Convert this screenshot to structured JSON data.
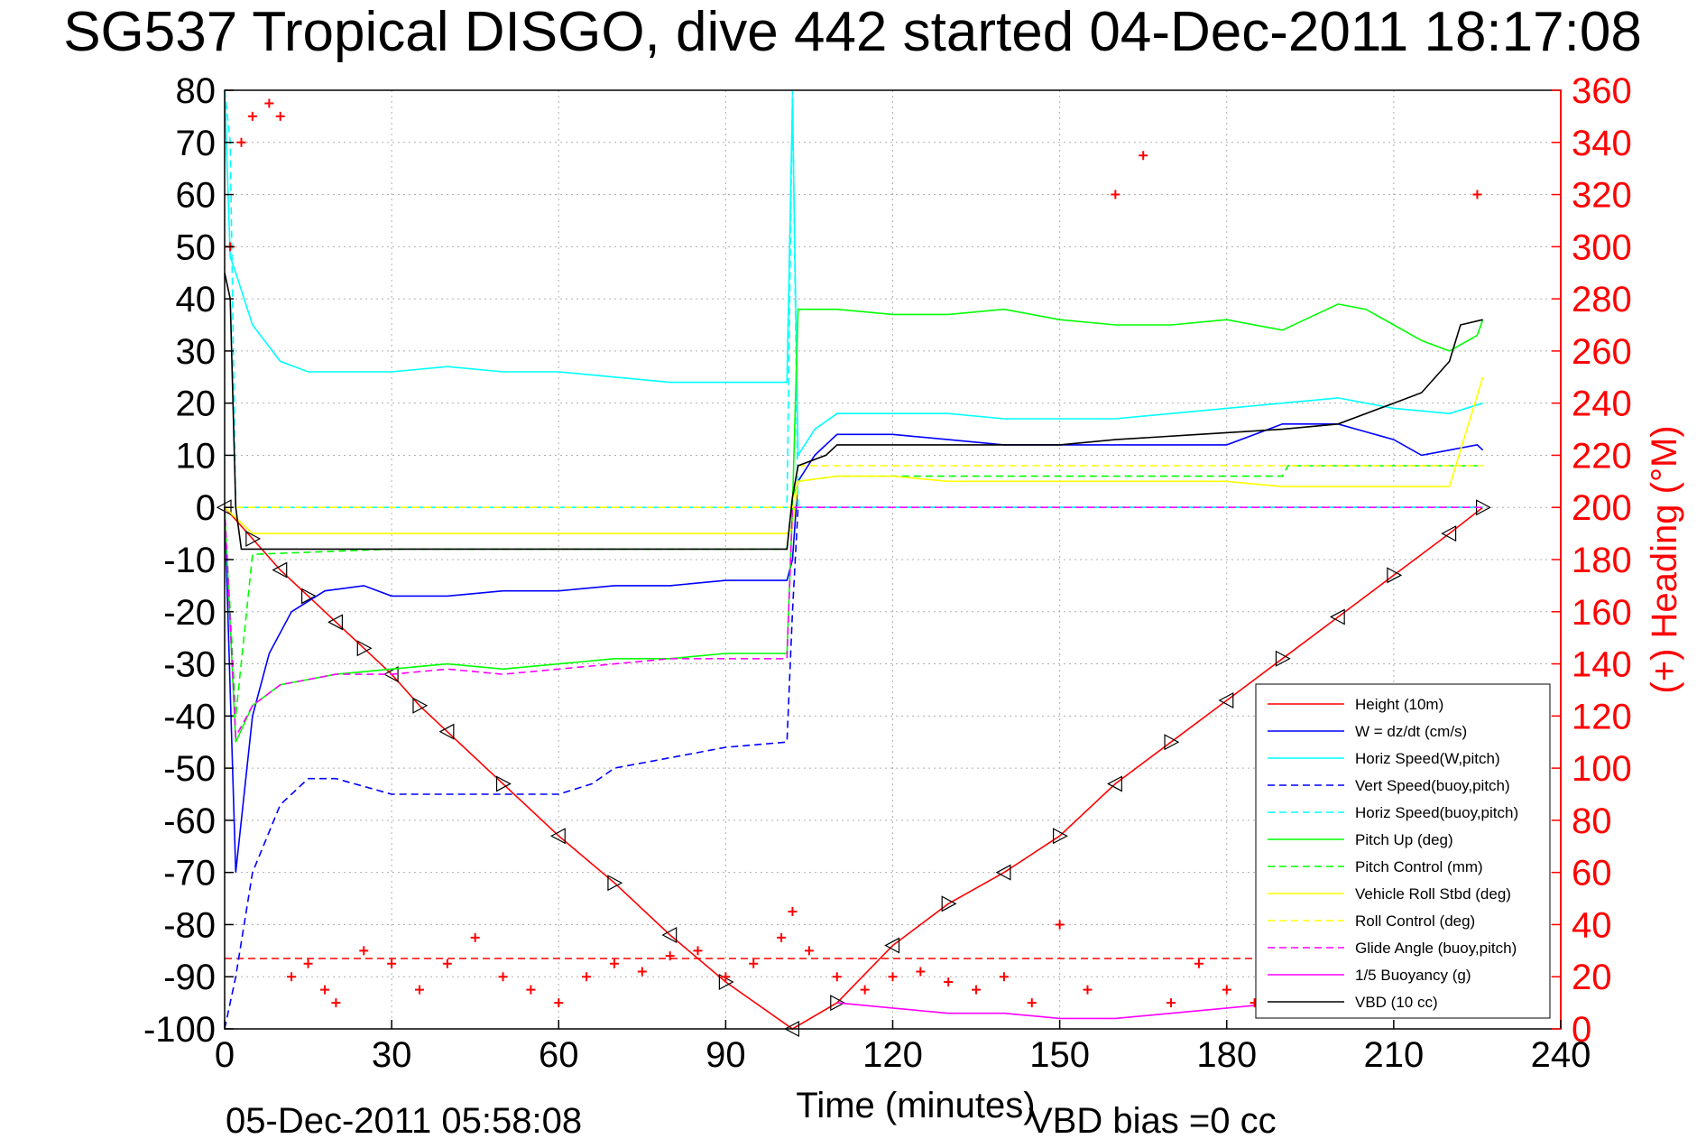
{
  "chart_data": {
    "type": "line",
    "title": "SG537 Tropical DISGO, dive 442 started 04-Dec-2011 18:17:08",
    "xlabel": "Time (minutes)",
    "ylabel_right": "(+) Heading (°M)",
    "xlim": [
      0,
      240
    ],
    "ylim": [
      -100,
      80
    ],
    "ylim_right": [
      0,
      360
    ],
    "x_ticks": [
      0,
      30,
      60,
      90,
      120,
      150,
      180,
      210,
      240
    ],
    "y_ticks": [
      80,
      70,
      60,
      50,
      40,
      30,
      20,
      10,
      0,
      -10,
      -20,
      -30,
      -40,
      -50,
      -60,
      -70,
      -80,
      -90,
      -100
    ],
    "y_ticks_right": [
      360,
      340,
      320,
      300,
      280,
      260,
      240,
      220,
      200,
      180,
      160,
      140,
      120,
      100,
      80,
      60,
      40,
      20,
      0
    ],
    "grid": true,
    "legend_position": "bottom-right",
    "footer_left": "05-Dec-2011 05:58:08",
    "footer_right": "VBD bias =0 cc",
    "colors": {
      "height": "#ff0000",
      "w": "#0000ff",
      "horiz_speed": "#00ffff",
      "pitch": "#00ff00",
      "roll": "#ffff00",
      "glide": "#ff00ff",
      "vbd": "#000000",
      "heading": "#ff0000"
    },
    "series": [
      {
        "name": "Height (10m)",
        "color": "#ff0000",
        "style": "solid",
        "marker": "triangle",
        "x": [
          0,
          5,
          10,
          15,
          20,
          25,
          30,
          35,
          40,
          50,
          60,
          70,
          80,
          90,
          102,
          110,
          120,
          130,
          140,
          150,
          160,
          170,
          180,
          190,
          200,
          210,
          220,
          226
        ],
        "y": [
          0,
          -6,
          -12,
          -17,
          -22,
          -27,
          -32,
          -38,
          -43,
          -53,
          -63,
          -72,
          -82,
          -91,
          -100,
          -95,
          -84,
          -76,
          -70,
          -63,
          -53,
          -45,
          -37,
          -29,
          -21,
          -13,
          -5,
          0
        ]
      },
      {
        "name": "W = dz/dt (cm/s)",
        "color": "#0000ff",
        "style": "solid",
        "x": [
          0,
          2,
          5,
          8,
          12,
          18,
          25,
          30,
          40,
          50,
          60,
          70,
          80,
          90,
          101,
          102,
          103,
          106,
          110,
          120,
          130,
          140,
          150,
          160,
          170,
          180,
          190,
          200,
          210,
          215,
          220,
          225,
          226
        ],
        "y": [
          0,
          -70,
          -40,
          -28,
          -20,
          -16,
          -15,
          -17,
          -17,
          -16,
          -16,
          -15,
          -15,
          -14,
          -14,
          -10,
          5,
          10,
          14,
          14,
          13,
          12,
          12,
          12,
          12,
          12,
          16,
          16,
          13,
          10,
          11,
          12,
          11
        ]
      },
      {
        "name": "Horiz Speed(W,pitch)",
        "color": "#00ffff",
        "style": "solid",
        "x": [
          0,
          1,
          2,
          5,
          10,
          15,
          20,
          30,
          40,
          50,
          60,
          70,
          80,
          90,
          101,
          102,
          103,
          106,
          110,
          120,
          130,
          140,
          150,
          160,
          170,
          180,
          190,
          200,
          210,
          220,
          226
        ],
        "y": [
          80,
          48,
          45,
          35,
          28,
          26,
          26,
          26,
          27,
          26,
          26,
          25,
          24,
          24,
          24,
          78,
          10,
          15,
          18,
          18,
          18,
          17,
          17,
          17,
          18,
          19,
          20,
          21,
          19,
          18,
          20
        ]
      },
      {
        "name": "Vert Speed(buoy,pitch)",
        "color": "#0000ff",
        "style": "dashed",
        "x": [
          0,
          2,
          5,
          10,
          15,
          20,
          30,
          40,
          50,
          60,
          66,
          70,
          80,
          90,
          101,
          102,
          103,
          226
        ],
        "y": [
          -100,
          -90,
          -70,
          -57,
          -52,
          -52,
          -55,
          -55,
          -55,
          -55,
          -53,
          -50,
          -48,
          -46,
          -45,
          -20,
          0,
          0
        ]
      },
      {
        "name": "Horiz Speed(buoy,pitch)",
        "color": "#00ffff",
        "style": "dashed",
        "x": [
          0,
          1,
          2,
          101,
          102,
          103,
          226
        ],
        "y": [
          80,
          70,
          0,
          0,
          80,
          0,
          0
        ]
      },
      {
        "name": "Pitch Up (deg)",
        "color": "#00ff00",
        "style": "solid",
        "x": [
          0,
          2,
          5,
          10,
          20,
          30,
          40,
          50,
          60,
          70,
          80,
          90,
          101,
          102,
          103,
          110,
          120,
          130,
          140,
          150,
          160,
          170,
          180,
          190,
          200,
          205,
          210,
          215,
          220,
          225,
          226
        ],
        "y": [
          0,
          -45,
          -38,
          -34,
          -32,
          -31,
          -30,
          -31,
          -30,
          -29,
          -29,
          -28,
          -28,
          0,
          38,
          38,
          37,
          37,
          38,
          36,
          35,
          35,
          36,
          34,
          39,
          38,
          35,
          32,
          30,
          33,
          36
        ]
      },
      {
        "name": "Pitch Control (mm)",
        "color": "#00ff00",
        "style": "dashed",
        "x": [
          0,
          2,
          5,
          30,
          101,
          102,
          103,
          110,
          190,
          191,
          226
        ],
        "y": [
          0,
          -40,
          -9,
          -8,
          -8,
          2,
          5,
          6,
          6,
          8,
          8
        ]
      },
      {
        "name": "Vehicle Roll Stbd (deg)",
        "color": "#ffff00",
        "style": "solid",
        "x": [
          0,
          5,
          10,
          20,
          30,
          40,
          50,
          60,
          70,
          80,
          90,
          101,
          102,
          103,
          110,
          120,
          130,
          140,
          150,
          160,
          170,
          180,
          190,
          200,
          210,
          220,
          226
        ],
        "y": [
          0,
          -5,
          -5,
          -5,
          -5,
          -5,
          -5,
          -5,
          -5,
          -5,
          -5,
          -5,
          -4,
          5,
          6,
          6,
          5,
          5,
          5,
          5,
          5,
          5,
          4,
          4,
          4,
          4,
          25
        ]
      },
      {
        "name": "Roll Control (deg)",
        "color": "#ffff00",
        "style": "dashed",
        "x": [
          0,
          102,
          103,
          226
        ],
        "y": [
          0,
          0,
          8,
          8
        ]
      },
      {
        "name": "Glide Angle (buoy,pitch)",
        "color": "#ff00ff",
        "style": "dashed",
        "x": [
          0,
          2,
          5,
          10,
          20,
          30,
          40,
          50,
          60,
          70,
          80,
          90,
          101,
          102,
          103,
          226
        ],
        "y": [
          0,
          -44,
          -38,
          -34,
          -32,
          -32,
          -31,
          -32,
          -31,
          -30,
          -29,
          -29,
          -29,
          0,
          0,
          0
        ]
      },
      {
        "name": "1/5 Buoyancy (g)",
        "color": "#ff00ff",
        "style": "solid",
        "x": [
          110,
          120,
          130,
          140,
          150,
          160,
          170,
          180,
          190,
          200,
          210,
          220
        ],
        "y": [
          -95,
          -96,
          -97,
          -97,
          -98,
          -98,
          -97,
          -96,
          -95,
          -94,
          -94,
          -94
        ]
      },
      {
        "name": "VBD (10 cc)",
        "color": "#000000",
        "style": "solid",
        "x": [
          0,
          1,
          2,
          3,
          101,
          102,
          103,
          108,
          110,
          150,
          160,
          175,
          190,
          200,
          210,
          215,
          220,
          222,
          226
        ],
        "y": [
          45,
          40,
          0,
          -8,
          -8,
          2,
          8,
          10,
          12,
          12,
          13,
          14,
          15,
          16,
          20,
          22,
          28,
          35,
          36
        ]
      },
      {
        "name": "Heading",
        "color": "#ff0000",
        "style": "marker",
        "axis": "right",
        "x": [
          1,
          3,
          5,
          8,
          10,
          12,
          15,
          18,
          20,
          25,
          30,
          35,
          40,
          45,
          50,
          55,
          60,
          65,
          70,
          75,
          80,
          85,
          90,
          95,
          100,
          102,
          105,
          110,
          115,
          120,
          125,
          130,
          135,
          140,
          145,
          150,
          155,
          160,
          165,
          170,
          175,
          180,
          185,
          190,
          195,
          200,
          205,
          210,
          215,
          220,
          225
        ],
        "y": [
          300,
          340,
          350,
          355,
          350,
          20,
          25,
          15,
          10,
          30,
          25,
          15,
          25,
          35,
          20,
          15,
          10,
          20,
          25,
          22,
          28,
          30,
          20,
          25,
          35,
          45,
          30,
          20,
          15,
          20,
          22,
          18,
          15,
          20,
          10,
          40,
          15,
          320,
          335,
          10,
          25,
          15,
          10,
          20,
          12,
          15,
          18,
          15,
          20,
          25,
          320
        ]
      }
    ],
    "heading_mean_right": 27
  }
}
